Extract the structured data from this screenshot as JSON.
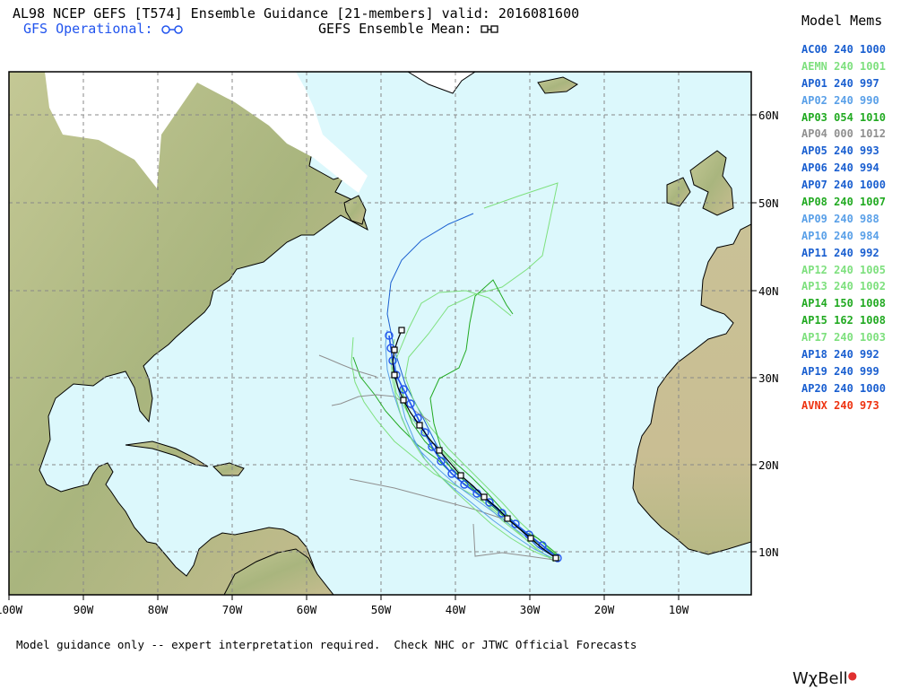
{
  "header": {
    "title": "AL98 NCEP GEFS [T574] Ensemble Guidance [21-members] valid: 2016081600",
    "gfs_operational": "GFS Operational: ",
    "ensemble_mean": "GEFS Ensemble Mean: "
  },
  "legend": {
    "title": "Model Mems",
    "members": [
      {
        "text": "AC00 240 1000",
        "color": "#1a5fd0"
      },
      {
        "text": "AEMN 240 1001",
        "color": "#7ee07e"
      },
      {
        "text": "AP01 240 997",
        "color": "#1a5fd0"
      },
      {
        "text": "AP02 240 990",
        "color": "#5aa0e8"
      },
      {
        "text": "AP03 054 1010",
        "color": "#22aa22"
      },
      {
        "text": "AP04 000 1012",
        "color": "#909090"
      },
      {
        "text": "AP05 240 993",
        "color": "#1a5fd0"
      },
      {
        "text": "AP06 240 994",
        "color": "#1a5fd0"
      },
      {
        "text": "AP07 240 1000",
        "color": "#1a5fd0"
      },
      {
        "text": "AP08 240 1007",
        "color": "#22aa22"
      },
      {
        "text": "AP09 240 988",
        "color": "#5aa0e8"
      },
      {
        "text": "AP10 240 984",
        "color": "#5aa0e8"
      },
      {
        "text": "AP11 240 992",
        "color": "#1a5fd0"
      },
      {
        "text": "AP12 240 1005",
        "color": "#7ee07e"
      },
      {
        "text": "AP13 240 1002",
        "color": "#7ee07e"
      },
      {
        "text": "AP14 150 1008",
        "color": "#22aa22"
      },
      {
        "text": "AP15 162 1008",
        "color": "#22aa22"
      },
      {
        "text": "AP17 240 1003",
        "color": "#7ee07e"
      },
      {
        "text": "AP18 240 992",
        "color": "#1a5fd0"
      },
      {
        "text": "AP19 240 999",
        "color": "#1a5fd0"
      },
      {
        "text": "AP20 240 1000",
        "color": "#1a5fd0"
      },
      {
        "text": "AVNX 240 973",
        "color": "#ee3311"
      }
    ]
  },
  "map": {
    "region": "North Atlantic",
    "lon_labels": [
      "100W",
      "90W",
      "80W",
      "70W",
      "60W",
      "50W",
      "40W",
      "30W",
      "20W",
      "10W"
    ],
    "lat_labels": [
      "60N",
      "50N",
      "40N",
      "30N",
      "20N",
      "10N"
    ],
    "colors": {
      "ocean": "#dcf8fc",
      "land": "#b8bf8c",
      "ice": "#ffffff",
      "border": "#000000"
    }
  },
  "footer": "Model guidance only -- expert interpretation required.  Check NHC or JTWC Official Forecasts",
  "brand": "WχBell"
}
